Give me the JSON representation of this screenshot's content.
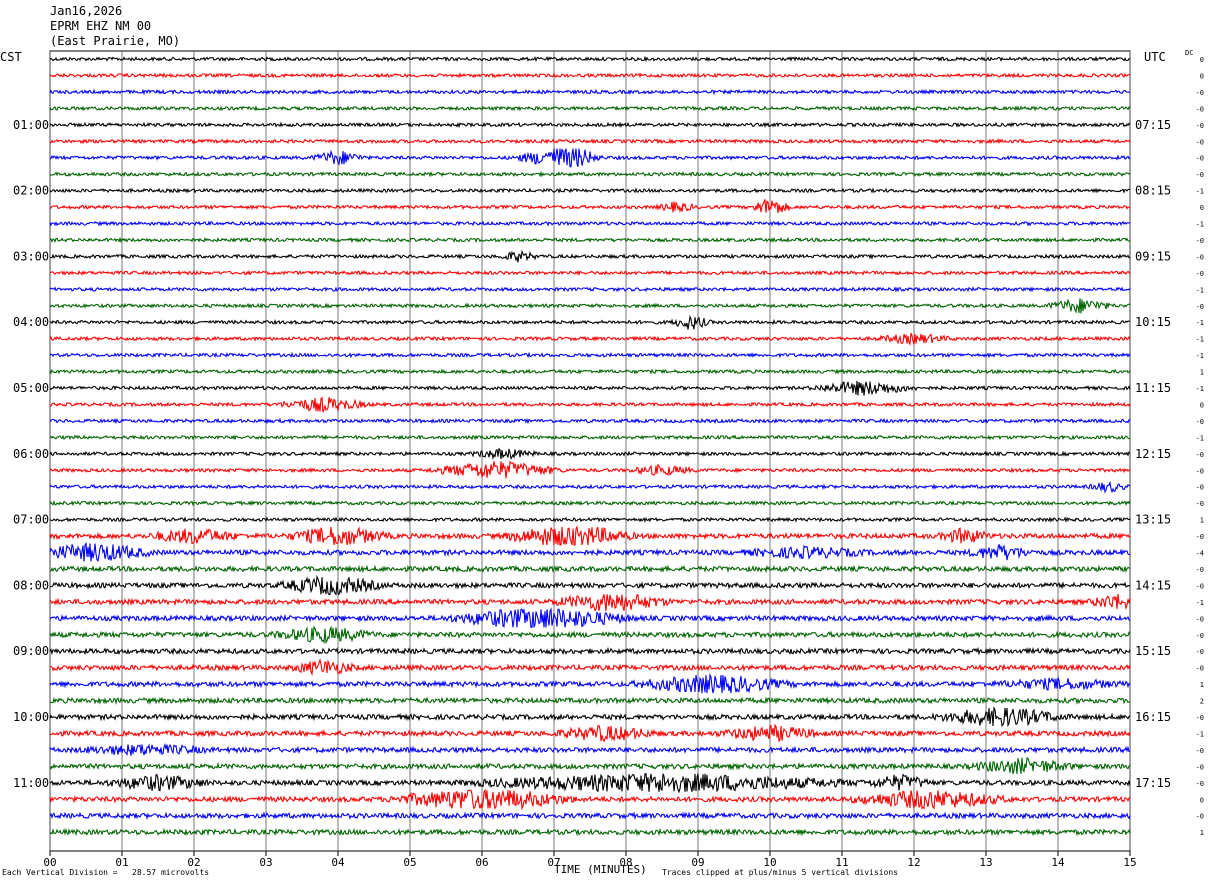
{
  "header": {
    "date": "Jan16,2026",
    "station": "EPRM EHZ NM 00",
    "location": "(East Prairie, MO)"
  },
  "left_tz": "CST",
  "right_tz": "UTC",
  "dc_label": "DC",
  "footer": {
    "division_note": "Each Vertical Division =   28.57 microvolts",
    "x_axis_title": "TIME (MINUTES)",
    "clip_note": "Traces clipped at plus/minus 5 vertical divisions"
  },
  "colors": {
    "trace_cycle": [
      "#000000",
      "#ff0000",
      "#0000ff",
      "#006400"
    ]
  },
  "chart_data": {
    "type": "line",
    "title": "EPRM EHZ NM 00",
    "xlabel": "TIME (MINUTES)",
    "xlim": [
      0,
      15
    ],
    "x_ticks": [
      "00",
      "01",
      "02",
      "03",
      "04",
      "05",
      "06",
      "07",
      "08",
      "09",
      "10",
      "11",
      "12",
      "13",
      "14",
      "15"
    ],
    "grid": true,
    "row_count": 48,
    "minutes_per_row": 15,
    "left_hour_labels": [
      "01:00",
      "02:00",
      "03:00",
      "04:00",
      "05:00",
      "06:00",
      "07:00",
      "08:00",
      "09:00",
      "10:00",
      "11:00"
    ],
    "right_hour_labels": [
      "07:15",
      "08:15",
      "09:15",
      "10:15",
      "11:15",
      "12:15",
      "13:15",
      "14:15",
      "15:15",
      "16:15",
      "17:15"
    ],
    "row_dc_offsets": [
      "0",
      "0",
      "-0",
      "-0",
      "-0",
      "-0",
      "-0",
      "-0",
      "-1",
      "0",
      "-1",
      "-0",
      "-0",
      "-0",
      "-1",
      "-0",
      "-1",
      "-1",
      "-1",
      "1",
      "-1",
      "0",
      "-0",
      "-1",
      "-0",
      "-0",
      "-0",
      "-0",
      "1",
      "-0",
      "-4",
      "-0",
      "-0",
      "-1",
      "-0",
      "-0",
      "-0",
      "-0",
      "1",
      "2",
      "-0",
      "-1",
      "-0",
      "-0",
      "-0",
      "0",
      "-0",
      "1"
    ],
    "events": [
      {
        "row": 6,
        "minute": 4.0,
        "amp": 3,
        "dur": 0.4
      },
      {
        "row": 6,
        "minute": 7.0,
        "amp": 4,
        "dur": 0.6
      },
      {
        "row": 6,
        "minute": 7.3,
        "amp": 3,
        "dur": 0.4
      },
      {
        "row": 9,
        "minute": 10.0,
        "amp": 4,
        "dur": 0.3
      },
      {
        "row": 9,
        "minute": 8.7,
        "amp": 2,
        "dur": 0.3
      },
      {
        "row": 12,
        "minute": 6.5,
        "amp": 2,
        "dur": 0.3
      },
      {
        "row": 15,
        "minute": 14.3,
        "amp": 3,
        "dur": 0.5
      },
      {
        "row": 16,
        "minute": 8.9,
        "amp": 3,
        "dur": 0.3
      },
      {
        "row": 17,
        "minute": 12.0,
        "amp": 2,
        "dur": 0.6
      },
      {
        "row": 20,
        "minute": 11.3,
        "amp": 3,
        "dur": 0.8
      },
      {
        "row": 21,
        "minute": 3.8,
        "amp": 3,
        "dur": 0.7
      },
      {
        "row": 24,
        "minute": 6.3,
        "amp": 2,
        "dur": 0.5
      },
      {
        "row": 25,
        "minute": 6.2,
        "amp": 4,
        "dur": 1.0
      },
      {
        "row": 25,
        "minute": 8.5,
        "amp": 2,
        "dur": 0.5
      },
      {
        "row": 26,
        "minute": 14.7,
        "amp": 2,
        "dur": 0.3
      },
      {
        "row": 29,
        "minute": 2.0,
        "amp": 3,
        "dur": 0.7
      },
      {
        "row": 29,
        "minute": 4.0,
        "amp": 4,
        "dur": 0.8
      },
      {
        "row": 29,
        "minute": 7.2,
        "amp": 5,
        "dur": 1.0
      },
      {
        "row": 29,
        "minute": 12.7,
        "amp": 3,
        "dur": 0.4
      },
      {
        "row": 30,
        "minute": 0.6,
        "amp": 4,
        "dur": 0.9
      },
      {
        "row": 30,
        "minute": 10.5,
        "amp": 2,
        "dur": 1.0
      },
      {
        "row": 30,
        "minute": 13.2,
        "amp": 3,
        "dur": 0.5
      },
      {
        "row": 32,
        "minute": 3.9,
        "amp": 4,
        "dur": 0.8
      },
      {
        "row": 33,
        "minute": 7.8,
        "amp": 4,
        "dur": 0.9
      },
      {
        "row": 33,
        "minute": 14.8,
        "amp": 3,
        "dur": 0.4
      },
      {
        "row": 34,
        "minute": 6.8,
        "amp": 5,
        "dur": 1.4
      },
      {
        "row": 35,
        "minute": 3.8,
        "amp": 3,
        "dur": 0.8
      },
      {
        "row": 37,
        "minute": 3.8,
        "amp": 3,
        "dur": 0.5
      },
      {
        "row": 38,
        "minute": 9.2,
        "amp": 4,
        "dur": 1.2
      },
      {
        "row": 38,
        "minute": 14.0,
        "amp": 2,
        "dur": 1.0
      },
      {
        "row": 40,
        "minute": 13.2,
        "amp": 4,
        "dur": 1.0
      },
      {
        "row": 41,
        "minute": 7.7,
        "amp": 3,
        "dur": 0.8
      },
      {
        "row": 41,
        "minute": 10.0,
        "amp": 3,
        "dur": 0.8
      },
      {
        "row": 42,
        "minute": 1.3,
        "amp": 2,
        "dur": 1.0
      },
      {
        "row": 43,
        "minute": 13.5,
        "amp": 3,
        "dur": 0.8
      },
      {
        "row": 44,
        "minute": 1.5,
        "amp": 3,
        "dur": 0.8
      },
      {
        "row": 44,
        "minute": 8.5,
        "amp": 4,
        "dur": 3.0
      },
      {
        "row": 44,
        "minute": 11.8,
        "amp": 3,
        "dur": 0.5
      },
      {
        "row": 45,
        "minute": 6.0,
        "amp": 5,
        "dur": 1.4
      },
      {
        "row": 45,
        "minute": 12.2,
        "amp": 4,
        "dur": 1.2
      }
    ]
  }
}
